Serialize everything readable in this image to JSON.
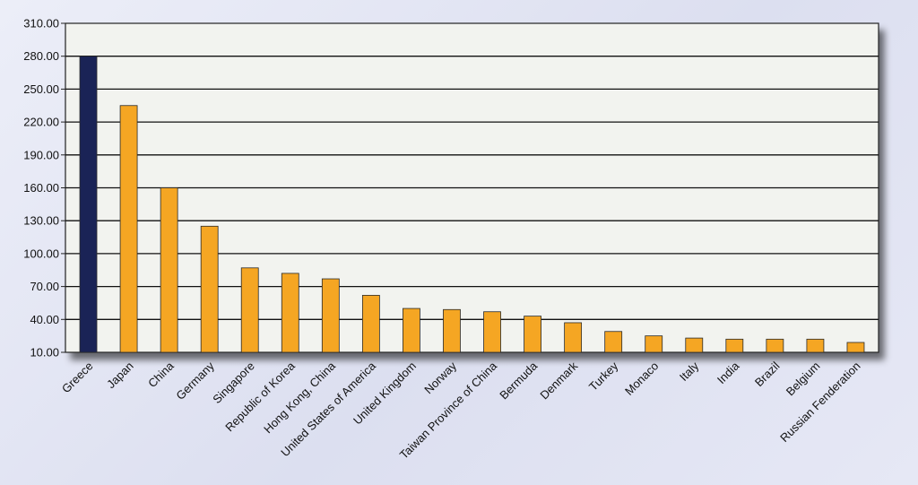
{
  "chart_data": {
    "type": "bar",
    "title": "",
    "xlabel": "",
    "ylabel": "",
    "ylim": [
      10,
      310
    ],
    "yticks": [
      "10.00",
      "40.00",
      "70.00",
      "100.00",
      "130.00",
      "160.00",
      "190.00",
      "220.00",
      "250.00",
      "280.00",
      "310.00"
    ],
    "grid": true,
    "categories": [
      "Greece",
      "Japan",
      "China",
      "Germany",
      "Singapore",
      "Republic of Korea",
      "Hong Kong, China",
      "United States of America",
      "United Kingdom",
      "Norway",
      "Taiwan Province of China",
      "Bermuda",
      "Denmark",
      "Turkey",
      "Monaco",
      "Italy",
      "India",
      "Brazil",
      "Belgium",
      "Russian Fenderation"
    ],
    "values": [
      280,
      235,
      160,
      125,
      87,
      82,
      77,
      62,
      50,
      49,
      47,
      43,
      37,
      29,
      25,
      23,
      22,
      22,
      22,
      19
    ],
    "colors": {
      "highlight": "#1a2356",
      "bar": "#f5a623",
      "bar_edge": "#2a2a2a",
      "plot_bg": "#f2f3ef",
      "grid": "#111111"
    }
  }
}
